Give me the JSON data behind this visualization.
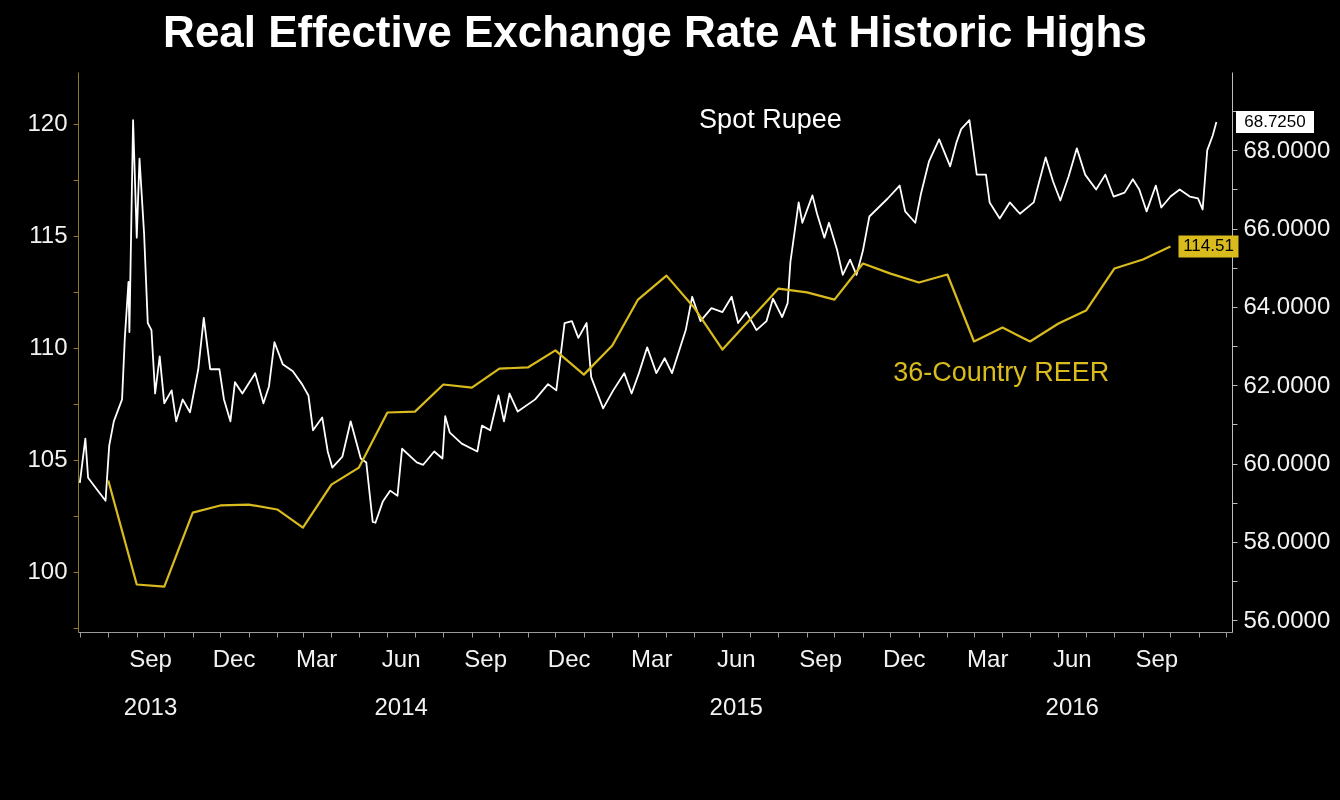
{
  "chart_data": {
    "type": "line",
    "title": "Real Effective Exchange Rate At Historic Highs",
    "xlim": [
      "2013-06-29",
      "2016-12-07"
    ],
    "xticks": [
      {
        "value": "2013-07-01",
        "label": null
      },
      {
        "value": "2013-08-01",
        "label": null
      },
      {
        "value": "2013-09-01",
        "label": null
      },
      {
        "value": "2013-09-16",
        "label": "Sep\n2013"
      },
      {
        "value": "2013-10-01",
        "label": null
      },
      {
        "value": "2013-11-01",
        "label": null
      },
      {
        "value": "2013-12-01",
        "label": null
      },
      {
        "value": "2013-12-16",
        "label": "Dec"
      },
      {
        "value": "2014-01-01",
        "label": null
      },
      {
        "value": "2014-02-01",
        "label": null
      },
      {
        "value": "2014-03-01",
        "label": null
      },
      {
        "value": "2014-03-16",
        "label": "Mar"
      },
      {
        "value": "2014-04-01",
        "label": null
      },
      {
        "value": "2014-05-01",
        "label": null
      },
      {
        "value": "2014-06-01",
        "label": null
      },
      {
        "value": "2014-06-16",
        "label": "Jun\n2014"
      },
      {
        "value": "2014-07-01",
        "label": null
      },
      {
        "value": "2014-08-01",
        "label": null
      },
      {
        "value": "2014-09-01",
        "label": null
      },
      {
        "value": "2014-09-16",
        "label": "Sep"
      },
      {
        "value": "2014-10-01",
        "label": null
      },
      {
        "value": "2014-11-01",
        "label": null
      },
      {
        "value": "2014-12-01",
        "label": null
      },
      {
        "value": "2014-12-16",
        "label": "Dec"
      },
      {
        "value": "2015-01-01",
        "label": null
      },
      {
        "value": "2015-02-01",
        "label": null
      },
      {
        "value": "2015-03-01",
        "label": null
      },
      {
        "value": "2015-03-16",
        "label": "Mar"
      },
      {
        "value": "2015-04-01",
        "label": null
      },
      {
        "value": "2015-05-01",
        "label": null
      },
      {
        "value": "2015-06-01",
        "label": null
      },
      {
        "value": "2015-06-16",
        "label": "Jun\n2015"
      },
      {
        "value": "2015-07-01",
        "label": null
      },
      {
        "value": "2015-08-01",
        "label": null
      },
      {
        "value": "2015-09-01",
        "label": null
      },
      {
        "value": "2015-09-16",
        "label": "Sep"
      },
      {
        "value": "2015-10-01",
        "label": null
      },
      {
        "value": "2015-11-01",
        "label": null
      },
      {
        "value": "2015-12-01",
        "label": null
      },
      {
        "value": "2015-12-16",
        "label": "Dec"
      },
      {
        "value": "2016-01-01",
        "label": null
      },
      {
        "value": "2016-02-01",
        "label": null
      },
      {
        "value": "2016-03-01",
        "label": null
      },
      {
        "value": "2016-03-16",
        "label": "Mar"
      },
      {
        "value": "2016-04-01",
        "label": null
      },
      {
        "value": "2016-05-01",
        "label": null
      },
      {
        "value": "2016-06-01",
        "label": null
      },
      {
        "value": "2016-06-16",
        "label": "Jun\n2016"
      },
      {
        "value": "2016-07-01",
        "label": null
      },
      {
        "value": "2016-08-01",
        "label": null
      },
      {
        "value": "2016-09-01",
        "label": null
      },
      {
        "value": "2016-09-16",
        "label": "Sep"
      },
      {
        "value": "2016-10-01",
        "label": null
      },
      {
        "value": "2016-11-01",
        "label": null
      },
      {
        "value": "2016-12-01",
        "label": null
      }
    ],
    "ylim": [
      97.3,
      122.3
    ],
    "yticks": [
      {
        "value": 97.5,
        "label": null
      },
      100,
      {
        "value": 102.5,
        "label": null
      },
      105,
      {
        "value": 107.5,
        "label": null
      },
      110,
      {
        "value": 112.5,
        "label": null
      },
      115,
      {
        "value": 117.5,
        "label": null
      },
      120
    ],
    "y2lim": [
      55.7,
      70.0
    ],
    "y2ticks": [
      {
        "value": 56,
        "label": "56.0000"
      },
      {
        "value": 57,
        "label": null
      },
      {
        "value": 58,
        "label": "58.0000"
      },
      {
        "value": 59,
        "label": null
      },
      {
        "value": 60,
        "label": "60.0000"
      },
      {
        "value": 61,
        "label": null
      },
      {
        "value": 62,
        "label": "62.0000"
      },
      {
        "value": 63,
        "label": null
      },
      {
        "value": 64,
        "label": "64.0000"
      },
      {
        "value": 65,
        "label": null
      },
      {
        "value": 66,
        "label": "66.0000"
      },
      {
        "value": 67,
        "label": null
      },
      {
        "value": 68,
        "label": "68.0000"
      },
      {
        "value": 69,
        "label": null
      }
    ],
    "series": [
      {
        "name": "36-Country REER",
        "type": "line",
        "color": "#d9bb1e",
        "x": [
          "2013-08-01",
          "2013-09-01",
          "2013-10-01",
          "2013-11-01",
          "2013-12-01",
          "2014-01-01",
          "2014-02-01",
          "2014-03-01",
          "2014-04-01",
          "2014-05-01",
          "2014-06-01",
          "2014-07-01",
          "2014-08-01",
          "2014-09-01",
          "2014-10-01",
          "2014-11-01",
          "2014-12-01",
          "2015-01-01",
          "2015-02-01",
          "2015-03-01",
          "2015-04-01",
          "2015-05-01",
          "2015-06-01",
          "2015-07-01",
          "2015-08-01",
          "2015-09-01",
          "2015-10-01",
          "2015-11-01",
          "2015-12-01",
          "2016-01-01",
          "2016-02-01",
          "2016-03-01",
          "2016-04-01",
          "2016-05-01",
          "2016-06-01",
          "2016-07-01",
          "2016-08-01",
          "2016-09-01",
          "2016-10-01"
        ],
        "values": [
          104.06,
          99.42,
          99.33,
          102.63,
          102.95,
          102.99,
          102.77,
          101.96,
          103.88,
          104.64,
          107.1,
          107.14,
          108.35,
          108.21,
          109.06,
          109.11,
          109.87,
          108.79,
          110.09,
          112.14,
          113.21,
          111.79,
          109.91,
          111.25,
          112.63,
          112.46,
          112.14,
          113.75,
          113.3,
          112.9,
          113.26,
          110.27,
          110.89,
          110.27,
          111.07,
          111.65,
          113.53,
          113.93,
          114.51
        ],
        "value_labels": [
          null,
          null,
          null,
          null,
          null,
          null,
          null,
          null,
          null,
          null,
          null,
          null,
          null,
          null,
          null,
          null,
          null,
          null,
          null,
          null,
          null,
          null,
          null,
          null,
          null,
          null,
          null,
          null,
          null,
          null,
          null,
          null,
          null,
          null,
          null,
          null,
          null,
          null,
          "114.51"
        ]
      },
      {
        "name": "Spot Rupee",
        "type": "line",
        "color": "#ffffff",
        "axis": "y2",
        "x": [
          "2013-07-01",
          "2013-07-07",
          "2013-07-10",
          "2013-07-19",
          "2013-07-29",
          "2013-08-02",
          "2013-08-07",
          "2013-08-16",
          "2013-08-19",
          "2013-08-23",
          "2013-08-24",
          "2013-08-28",
          "2013-09-01",
          "2013-09-04",
          "2013-09-09",
          "2013-09-13",
          "2013-09-17",
          "2013-09-21",
          "2013-09-26",
          "2013-10-01",
          "2013-10-09",
          "2013-10-14",
          "2013-10-21",
          "2013-10-29",
          "2013-11-07",
          "2013-11-13",
          "2013-11-20",
          "2013-11-30",
          "2013-12-05",
          "2013-12-12",
          "2013-12-17",
          "2013-12-25",
          "2014-01-08",
          "2014-01-17",
          "2014-01-23",
          "2014-01-29",
          "2014-02-07",
          "2014-02-18",
          "2014-02-28",
          "2014-03-07",
          "2014-03-12",
          "2014-03-22",
          "2014-03-28",
          "2014-04-02",
          "2014-04-13",
          "2014-04-22",
          "2014-05-03",
          "2014-05-09",
          "2014-05-16",
          "2014-05-19",
          "2014-05-27",
          "2014-06-04",
          "2014-06-12",
          "2014-06-17",
          "2014-07-03",
          "2014-07-10",
          "2014-07-22",
          "2014-07-31",
          "2014-08-03",
          "2014-08-08",
          "2014-08-21",
          "2014-09-07",
          "2014-09-12",
          "2014-09-21",
          "2014-09-30",
          "2014-10-06",
          "2014-10-12",
          "2014-10-21",
          "2014-11-09",
          "2014-11-23",
          "2014-12-02",
          "2014-12-11",
          "2014-12-19",
          "2014-12-26",
          "2015-01-04",
          "2015-01-09",
          "2015-01-22",
          "2015-02-02",
          "2015-02-14",
          "2015-02-22",
          "2015-03-02",
          "2015-03-11",
          "2015-03-21",
          "2015-03-30",
          "2015-04-07",
          "2015-04-16",
          "2015-04-22",
          "2015-04-29",
          "2015-05-08",
          "2015-05-20",
          "2015-06-01",
          "2015-06-11",
          "2015-06-18",
          "2015-06-27",
          "2015-07-08",
          "2015-07-19",
          "2015-07-26",
          "2015-08-05",
          "2015-08-11",
          "2015-08-14",
          "2015-08-23",
          "2015-08-27",
          "2015-09-07",
          "2015-09-12",
          "2015-09-20",
          "2015-09-25",
          "2015-10-04",
          "2015-10-10",
          "2015-10-18",
          "2015-10-25",
          "2015-11-01",
          "2015-11-08",
          "2015-11-18",
          "2015-11-28",
          "2015-12-11",
          "2015-12-17",
          "2015-12-28",
          "2016-01-03",
          "2016-01-12",
          "2016-01-23",
          "2016-02-04",
          "2016-02-11",
          "2016-02-16",
          "2016-02-25",
          "2016-03-04",
          "2016-03-14",
          "2016-03-18",
          "2016-03-29",
          "2016-04-09",
          "2016-04-20",
          "2016-05-05",
          "2016-05-18",
          "2016-05-26",
          "2016-06-03",
          "2016-06-12",
          "2016-06-21",
          "2016-06-30",
          "2016-07-12",
          "2016-07-22",
          "2016-07-31",
          "2016-08-12",
          "2016-08-21",
          "2016-08-28",
          "2016-09-05",
          "2016-09-15",
          "2016-09-21",
          "2016-10-01",
          "2016-10-11",
          "2016-10-22",
          "2016-10-31",
          "2016-11-05",
          "2016-11-10",
          "2016-11-16",
          "2016-11-20"
        ],
        "values": [
          59.51,
          60.64,
          59.64,
          59.36,
          59.05,
          60.46,
          61.08,
          61.64,
          63.21,
          64.64,
          63.36,
          68.77,
          65.77,
          67.79,
          65.87,
          63.59,
          63.41,
          61.79,
          62.74,
          61.54,
          61.87,
          61.08,
          61.64,
          61.31,
          62.41,
          63.72,
          62.41,
          62.41,
          61.64,
          61.08,
          62.08,
          61.79,
          62.31,
          61.54,
          61.97,
          63.1,
          62.54,
          62.36,
          62.03,
          61.74,
          60.85,
          61.18,
          60.31,
          59.9,
          60.18,
          61.08,
          60.13,
          60.03,
          58.51,
          58.49,
          59.03,
          59.31,
          59.18,
          60.38,
          60.03,
          59.97,
          60.31,
          60.13,
          61.21,
          60.79,
          60.51,
          60.31,
          60.97,
          60.85,
          61.74,
          61.08,
          61.79,
          61.33,
          61.64,
          62.03,
          61.87,
          63.59,
          63.64,
          63.21,
          63.59,
          62.21,
          61.41,
          61.87,
          62.31,
          61.79,
          62.31,
          62.97,
          62.31,
          62.69,
          62.31,
          62.97,
          63.41,
          64.26,
          63.64,
          63.97,
          63.87,
          64.26,
          63.59,
          63.87,
          63.41,
          63.64,
          64.21,
          63.74,
          64.1,
          65.15,
          66.67,
          66.15,
          66.85,
          66.38,
          65.77,
          66.15,
          65.44,
          64.82,
          65.21,
          64.82,
          65.44,
          66.31,
          66.54,
          66.77,
          67.1,
          66.44,
          66.15,
          66.87,
          67.72,
          68.28,
          67.59,
          68.21,
          68.54,
          68.77,
          67.38,
          67.38,
          66.67,
          66.26,
          66.67,
          66.38,
          66.67,
          67.82,
          67.21,
          66.72,
          67.33,
          68.05,
          67.38,
          67.0,
          67.38,
          66.82,
          66.92,
          67.26,
          67.0,
          66.44,
          67.1,
          66.54,
          66.82,
          67.0,
          66.82,
          66.77,
          66.49,
          68.0,
          68.38,
          68.725
        ],
        "value_labels": [
          null,
          null,
          null,
          null,
          null,
          null,
          null,
          null,
          null,
          null,
          null,
          null,
          null,
          null,
          null,
          null,
          null,
          null,
          null,
          null,
          null,
          null,
          null,
          null,
          null,
          null,
          null,
          null,
          null,
          null,
          null,
          null,
          null,
          null,
          null,
          null,
          null,
          null,
          null,
          null,
          null,
          null,
          null,
          null,
          null,
          null,
          null,
          null,
          null,
          null,
          null,
          null,
          null,
          null,
          null,
          null,
          null,
          null,
          null,
          null,
          null,
          null,
          null,
          null,
          null,
          null,
          null,
          null,
          null,
          null,
          null,
          null,
          null,
          null,
          null,
          null,
          null,
          null,
          null,
          null,
          null,
          null,
          null,
          null,
          null,
          null,
          null,
          null,
          null,
          null,
          null,
          null,
          null,
          null,
          null,
          null,
          null,
          null,
          null,
          null,
          null,
          null,
          null,
          null,
          null,
          null,
          null,
          null,
          null,
          null,
          null,
          null,
          null,
          null,
          null,
          null,
          null,
          null,
          null,
          null,
          null,
          null,
          null,
          null,
          null,
          null,
          null,
          null,
          null,
          null,
          null,
          null,
          null,
          null,
          null,
          null,
          null,
          null,
          null,
          null,
          null,
          null,
          null,
          null,
          null,
          null,
          null,
          null,
          null,
          null,
          null,
          null,
          null,
          "68.7250"
        ]
      }
    ]
  }
}
